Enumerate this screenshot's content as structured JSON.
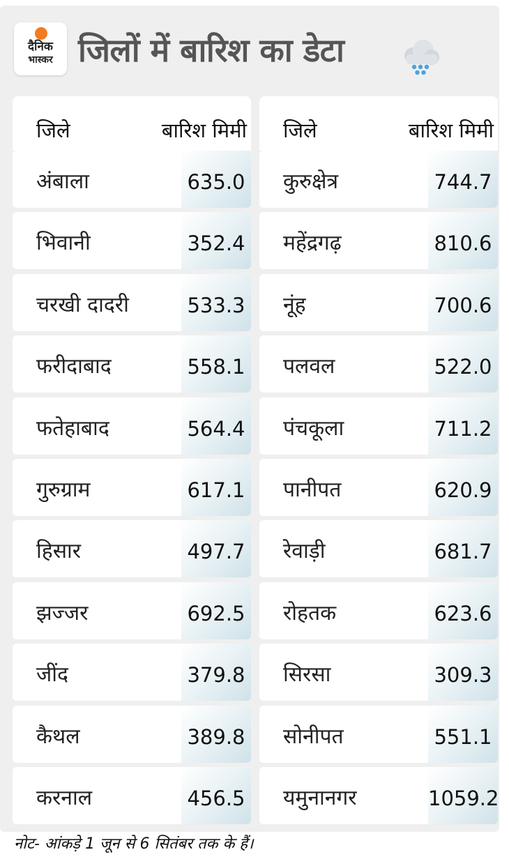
{
  "brand": {
    "line1": "दैनिक",
    "line2": "भास्कर",
    "sun_color": "#f47b20"
  },
  "title": "जिलों में बारिश का डेटा",
  "title_icon": "rain-cloud-icon",
  "columns": {
    "name_header": "जिले",
    "value_header": "बारिश मिमी"
  },
  "left_rows": [
    {
      "name": "अंबाला",
      "value": "635.0"
    },
    {
      "name": "भिवानी",
      "value": "352.4"
    },
    {
      "name": "चरखी दादरी",
      "value": "533.3"
    },
    {
      "name": "फरीदाबाद",
      "value": "558.1"
    },
    {
      "name": "फतेहाबाद",
      "value": "564.4"
    },
    {
      "name": "गुरुग्राम",
      "value": "617.1"
    },
    {
      "name": "हिसार",
      "value": "497.7"
    },
    {
      "name": "झज्जर",
      "value": "692.5"
    },
    {
      "name": "जींद",
      "value": "379.8"
    },
    {
      "name": "कैथल",
      "value": "389.8"
    },
    {
      "name": "करनाल",
      "value": "456.5"
    }
  ],
  "right_rows": [
    {
      "name": "कुरुक्षेत्र",
      "value": "744.7"
    },
    {
      "name": "महेंद्रगढ़",
      "value": "810.6"
    },
    {
      "name": "नूंह",
      "value": "700.6"
    },
    {
      "name": "पलवल",
      "value": "522.0"
    },
    {
      "name": "पंचकूला",
      "value": "711.2"
    },
    {
      "name": "पानीपत",
      "value": "620.9"
    },
    {
      "name": "रेवाड़ी",
      "value": "681.7"
    },
    {
      "name": "रोहतक",
      "value": "623.6"
    },
    {
      "name": "सिरसा",
      "value": "309.3"
    },
    {
      "name": "सोनीपत",
      "value": "551.1"
    },
    {
      "name": "यमुनानगर",
      "value": "1059.2"
    }
  ],
  "note": "नोट- आंकड़े 1 जून से 6 सितंबर तक के हैं।"
}
